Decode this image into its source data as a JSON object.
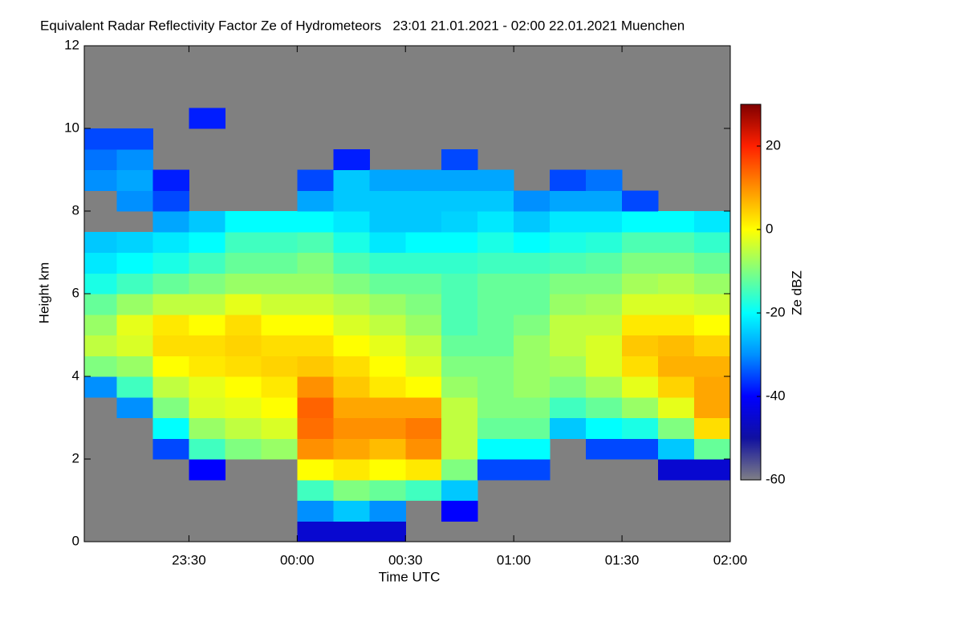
{
  "chart_data": {
    "type": "heatmap",
    "title": "Equivalent Radar Reflectivity Factor Ze of Hydrometeors   23:01 21.01.2021 - 02:00 22.01.2021 Muenchen",
    "x_label": "Time UTC",
    "y_label": "Height km",
    "colorbar_label": "Ze dBZ",
    "xlim": [
      -59,
      120
    ],
    "xticks": [
      {
        "value": -30,
        "label": "23:30"
      },
      {
        "value": 0,
        "label": "00:00"
      },
      {
        "value": 30,
        "label": "00:30"
      },
      {
        "value": 60,
        "label": "01:00"
      },
      {
        "value": 90,
        "label": "01:30"
      },
      {
        "value": 120,
        "label": "02:00"
      }
    ],
    "ylim": [
      0,
      12
    ],
    "yticks": [
      0,
      2,
      4,
      6,
      8,
      10,
      12
    ],
    "zlim": [
      -60,
      30
    ],
    "zticks": [
      -60,
      -40,
      -20,
      0,
      20
    ],
    "background": "#808080",
    "colormap": [
      "#7f7f86",
      "#1010a0",
      "#0000ff",
      "#0090ff",
      "#00ffff",
      "#80ff80",
      "#ffff00",
      "#ff9000",
      "#ff2000",
      "#800000"
    ],
    "xbins": [
      -59,
      -50,
      -40,
      -30,
      -20,
      -10,
      0,
      10,
      20,
      30,
      40,
      50,
      60,
      70,
      80,
      90,
      100,
      110,
      120
    ],
    "ybins": [
      0,
      0.5,
      1,
      1.5,
      2,
      2.5,
      3,
      3.5,
      4,
      4.5,
      5,
      5.5,
      6,
      6.5,
      7,
      7.5,
      8,
      8.5,
      9,
      9.5,
      10,
      10.5,
      11,
      11.5,
      12
    ],
    "values": [
      [
        null,
        null,
        null,
        null,
        null,
        null,
        null,
        -30,
        -10,
        -5,
        -8,
        -12,
        -18,
        -22,
        -25,
        null,
        null,
        -30,
        -32,
        -35,
        null,
        null,
        null,
        null
      ],
      [
        null,
        null,
        null,
        null,
        null,
        null,
        -30,
        -15,
        -8,
        -3,
        -2,
        -8,
        -15,
        -20,
        -24,
        null,
        -30,
        -28,
        -30,
        -35,
        null,
        null,
        null,
        null
      ],
      [
        null,
        null,
        null,
        null,
        -35,
        -20,
        -10,
        -5,
        0,
        3,
        2,
        -5,
        -12,
        -18,
        -22,
        -28,
        -35,
        -38,
        null,
        null,
        null,
        null,
        null,
        null
      ],
      [
        null,
        null,
        null,
        -40,
        -15,
        -8,
        -3,
        -2,
        2,
        3,
        0,
        -5,
        -10,
        -15,
        -20,
        -25,
        null,
        null,
        null,
        null,
        -38,
        null,
        null,
        null
      ],
      [
        null,
        null,
        null,
        null,
        -10,
        -5,
        -2,
        0,
        3,
        4,
        3,
        -2,
        -8,
        -12,
        -15,
        -20,
        null,
        null,
        null,
        null,
        null,
        null,
        null,
        null
      ],
      [
        null,
        null,
        null,
        null,
        -8,
        -3,
        0,
        2,
        4,
        3,
        0,
        -4,
        -8,
        -12,
        -15,
        -20,
        null,
        null,
        null,
        null,
        null,
        null,
        null,
        null
      ],
      [
        -45,
        -30,
        -15,
        0,
        10,
        13,
        14,
        10,
        5,
        3,
        0,
        -4,
        -8,
        -10,
        -14,
        -20,
        -28,
        -35,
        null,
        null,
        null,
        null,
        null,
        null
      ],
      [
        -45,
        -25,
        -10,
        2,
        8,
        10,
        8,
        5,
        3,
        0,
        -3,
        -6,
        -10,
        -14,
        -18,
        -22,
        -25,
        -25,
        -38,
        null,
        null,
        null,
        null,
        null
      ],
      [
        -45,
        -30,
        -12,
        0,
        6,
        10,
        8,
        2,
        0,
        -2,
        -5,
        -8,
        -12,
        -16,
        -22,
        -25,
        -25,
        -28,
        null,
        null,
        null,
        null,
        null,
        null
      ],
      [
        null,
        null,
        -15,
        2,
        10,
        12,
        8,
        0,
        -3,
        -5,
        -8,
        -10,
        -12,
        -16,
        -20,
        -25,
        -25,
        -28,
        null,
        null,
        null,
        null,
        null,
        null
      ],
      [
        null,
        -40,
        -25,
        -10,
        -5,
        -5,
        -5,
        -8,
        -10,
        -12,
        -14,
        -14,
        -14,
        -16,
        -20,
        -24,
        -25,
        -28,
        -35,
        null,
        null,
        null,
        null,
        null
      ],
      [
        null,
        null,
        null,
        -35,
        -20,
        -12,
        -10,
        -10,
        -10,
        -12,
        -12,
        -12,
        -12,
        -15,
        -18,
        -22,
        -25,
        -28,
        null,
        null,
        null,
        null,
        null,
        null
      ],
      [
        null,
        null,
        null,
        -35,
        -20,
        -12,
        -10,
        -8,
        -8,
        -8,
        -10,
        -12,
        -12,
        -15,
        -20,
        -25,
        -30,
        null,
        null,
        null,
        null,
        null,
        null,
        null
      ],
      [
        null,
        null,
        null,
        null,
        null,
        -25,
        -15,
        -10,
        -7,
        -5,
        -5,
        -8,
        -10,
        -14,
        -18,
        -22,
        -28,
        -35,
        null,
        null,
        null,
        null,
        null,
        null
      ],
      [
        null,
        null,
        null,
        null,
        -35,
        -20,
        -12,
        -7,
        -3,
        -3,
        -5,
        -7,
        -10,
        -13,
        -17,
        -22,
        -28,
        -32,
        null,
        null,
        null,
        null,
        null,
        null
      ],
      [
        null,
        null,
        null,
        null,
        -35,
        -18,
        -8,
        -2,
        3,
        5,
        2,
        -3,
        -7,
        -10,
        -14,
        -20,
        -35,
        null,
        null,
        null,
        null,
        null,
        null,
        null
      ],
      [
        null,
        null,
        null,
        -45,
        -25,
        -10,
        -2,
        4,
        7,
        6,
        2,
        -3,
        -6,
        -10,
        -14,
        -20,
        null,
        null,
        null,
        null,
        null,
        null,
        null,
        null
      ],
      [
        null,
        null,
        null,
        -45,
        -12,
        3,
        8,
        8,
        7,
        4,
        0,
        -4,
        -8,
        -12,
        -16,
        -22,
        null,
        null,
        null,
        null,
        null,
        null,
        null,
        null
      ]
    ]
  }
}
